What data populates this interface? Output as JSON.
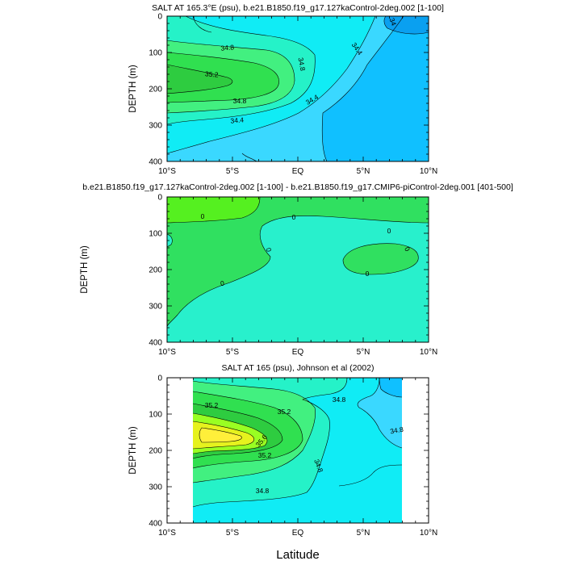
{
  "figure": {
    "shared_ylabel": "DEPTH (m)",
    "xlabel": "Latitude"
  },
  "colors": {
    "c33_8": "#0aa0f0",
    "c34_0": "#10c0ff",
    "c34_2": "#3ad8ff",
    "c34_4": "#10ecf5",
    "c34_6": "#25f2c8",
    "c34_8": "#42f080",
    "c35_0": "#30e050",
    "c35_2": "#2ecc40",
    "c35_4": "#99ff22",
    "c35_6": "#e6f21e",
    "c35_8": "#ffef3a",
    "diff_pos": "#55f020",
    "diff_mid": "#30e060",
    "diff_neg": "#28f0cc"
  },
  "chart_data": [
    {
      "type": "contour",
      "title": "SALT AT 165.3°E (psu), b.e21.B1850.f19_g17.127kaControl-2deg.002 [1-100]",
      "ylabel": "DEPTH (m)",
      "x_ticks": [
        "10°S",
        "5°S",
        "EQ",
        "5°N",
        "10°N"
      ],
      "x_tick_values": [
        -10,
        -5,
        0,
        5,
        10
      ],
      "xlim": [
        -10,
        10
      ],
      "y_ticks": [
        "0",
        "100",
        "200",
        "300",
        "400"
      ],
      "y_tick_values": [
        0,
        100,
        200,
        300,
        400
      ],
      "ylim": [
        400,
        0
      ],
      "contour_labels": [
        "34",
        "34.4",
        "34.8",
        "35.2",
        "34.8",
        "34.8",
        "34.4",
        "34.4"
      ],
      "fields": {
        "salinity_max_lat_depth": [
          -9.5,
          180
        ],
        "salinity_max_value": 35.3,
        "fresh_core_lat_depth": [
          8.5,
          20
        ]
      }
    },
    {
      "type": "contour",
      "title": "b.e21.B1850.f19_g17.127kaControl-2deg.002 [1-100] - b.e21.B1850.f19_g17.CMIP6-piControl-2deg.001 [401-500]",
      "ylabel": "DEPTH (m)",
      "x_ticks": [
        "10°S",
        "5°S",
        "EQ",
        "5°N",
        "10°N"
      ],
      "x_tick_values": [
        -10,
        -5,
        0,
        5,
        10
      ],
      "xlim": [
        -10,
        10
      ],
      "y_ticks": [
        "0",
        "100",
        "200",
        "300",
        "400"
      ],
      "y_tick_values": [
        0,
        100,
        200,
        300,
        400
      ],
      "ylim": [
        400,
        0
      ],
      "contour_labels": [
        "0",
        "0",
        "0",
        "0",
        "0",
        "0",
        "0"
      ]
    },
    {
      "type": "contour",
      "title": "SALT AT 165 (psu), Johnson et al (2002)",
      "ylabel": "DEPTH (m)",
      "xlabel": "Latitude",
      "x_ticks": [
        "10°S",
        "5°S",
        "EQ",
        "5°N",
        "10°N"
      ],
      "x_tick_values": [
        -10,
        -5,
        0,
        5,
        10
      ],
      "xlim": [
        -10,
        10
      ],
      "y_ticks": [
        "0",
        "100",
        "200",
        "300",
        "400"
      ],
      "y_tick_values": [
        0,
        100,
        200,
        300,
        400
      ],
      "ylim": [
        400,
        0
      ],
      "data_xlim": [
        -8,
        8
      ],
      "contour_labels": [
        "35.2",
        "35.2",
        "34.8",
        "35.6",
        "34.8",
        "35.2",
        "34.8",
        "34.8"
      ],
      "fields": {
        "salinity_max_lat_depth": [
          -5,
          180
        ],
        "salinity_max_value": 35.9
      }
    }
  ]
}
